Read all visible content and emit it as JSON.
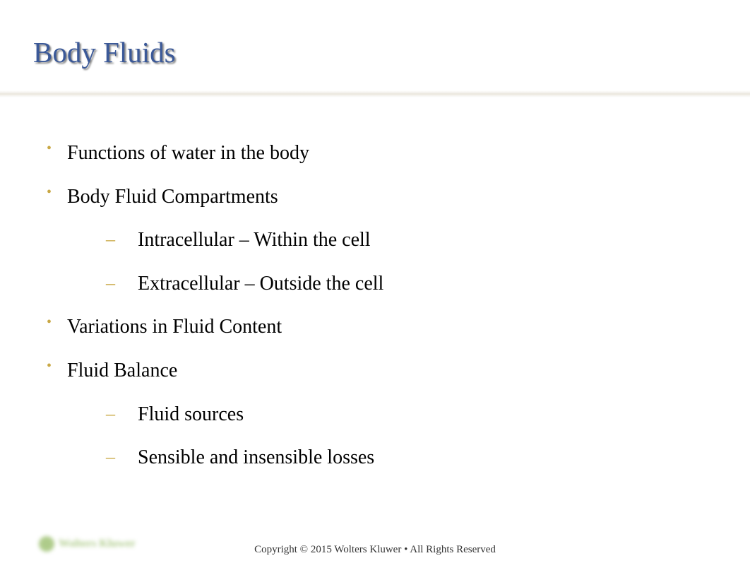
{
  "title": "Body Fluids",
  "bullets": [
    {
      "text": "Functions of water in the body",
      "subs": []
    },
    {
      "text": "Body Fluid Compartments",
      "subs": [
        "Intracellular – Within the cell",
        "Extracellular – Outside the cell"
      ]
    },
    {
      "text": "Variations in Fluid Content",
      "subs": []
    },
    {
      "text": "Fluid Balance",
      "subs": [
        "Fluid sources",
        "Sensible and insensible losses"
      ]
    }
  ],
  "footer": "Copyright © 2015 Wolters Kluwer • All Rights Reserved",
  "logo_text": "Wolters Kluwer",
  "colors": {
    "title_color": "#3b5998",
    "bullet_marker_color": "#c9a845",
    "text_color": "#000000",
    "logo_color": "#7aaa3e",
    "background": "#ffffff"
  },
  "typography": {
    "title_fontsize": 41,
    "bullet_fontsize": 28,
    "sub_fontsize": 28,
    "footer_fontsize": 15
  }
}
